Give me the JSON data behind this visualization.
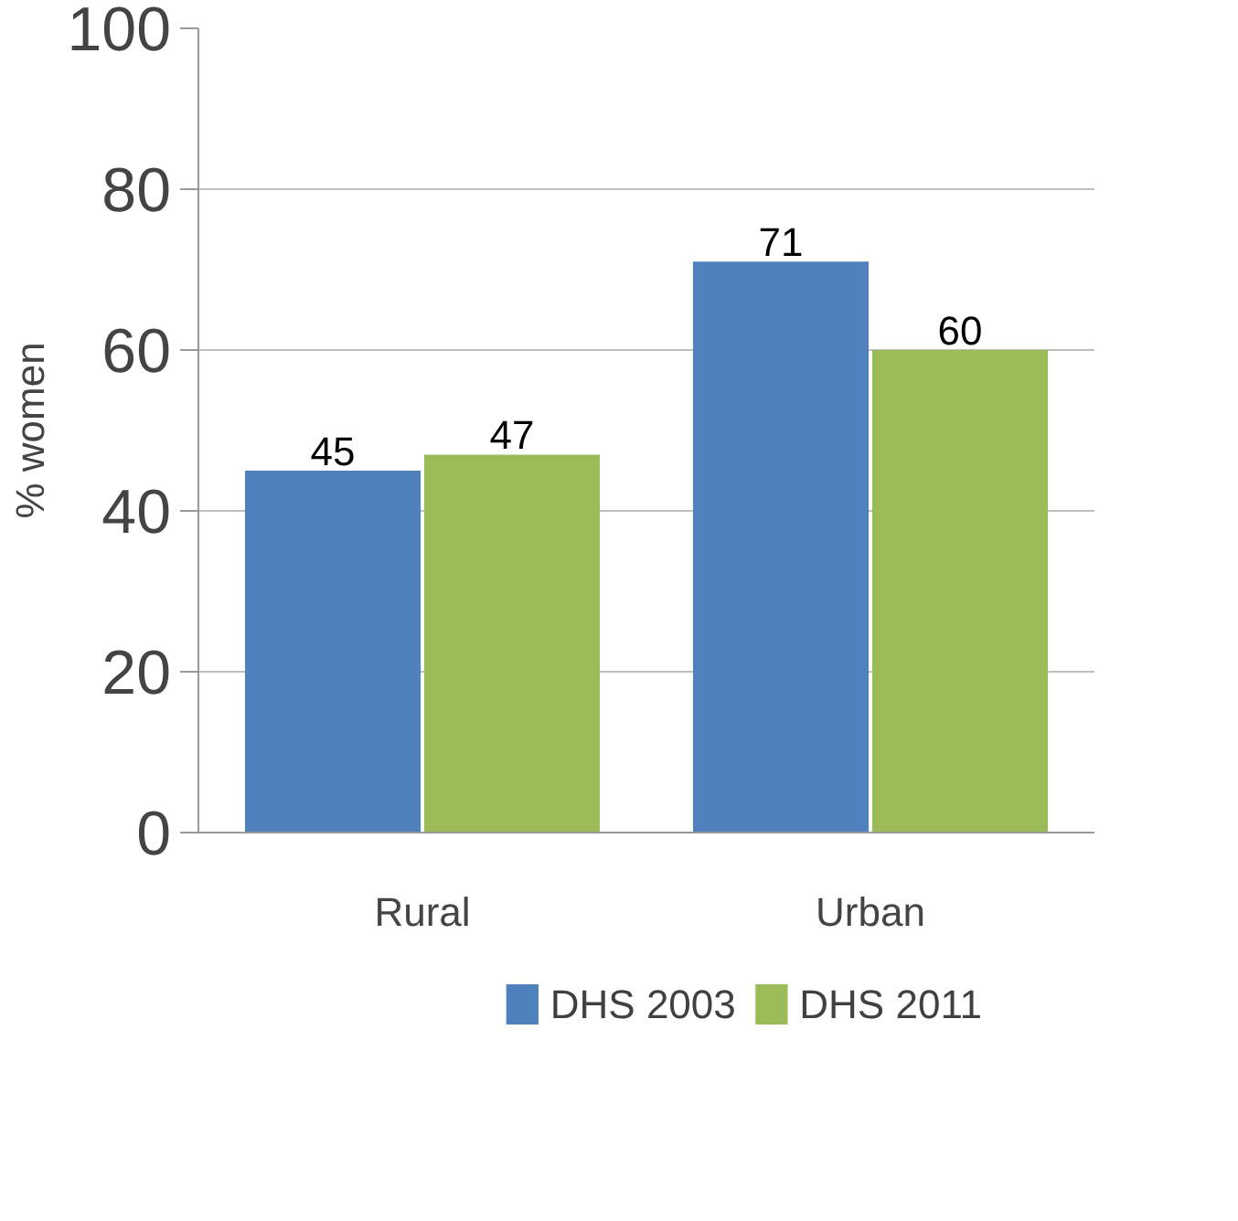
{
  "chart_data": {
    "type": "bar",
    "ylabel": "% women",
    "categories": [
      "Rural",
      "Urban"
    ],
    "series": [
      {
        "name": "DHS 2003",
        "color": "#4f81bd",
        "values": [
          45,
          71
        ]
      },
      {
        "name": "DHS 2011",
        "color": "#9bbb59",
        "values": [
          47,
          60
        ]
      }
    ],
    "ylim": [
      0,
      100
    ],
    "yticks": [
      0,
      20,
      40,
      60,
      80,
      100
    ],
    "grid": "y",
    "legend": "bottom",
    "data_labels": true
  }
}
